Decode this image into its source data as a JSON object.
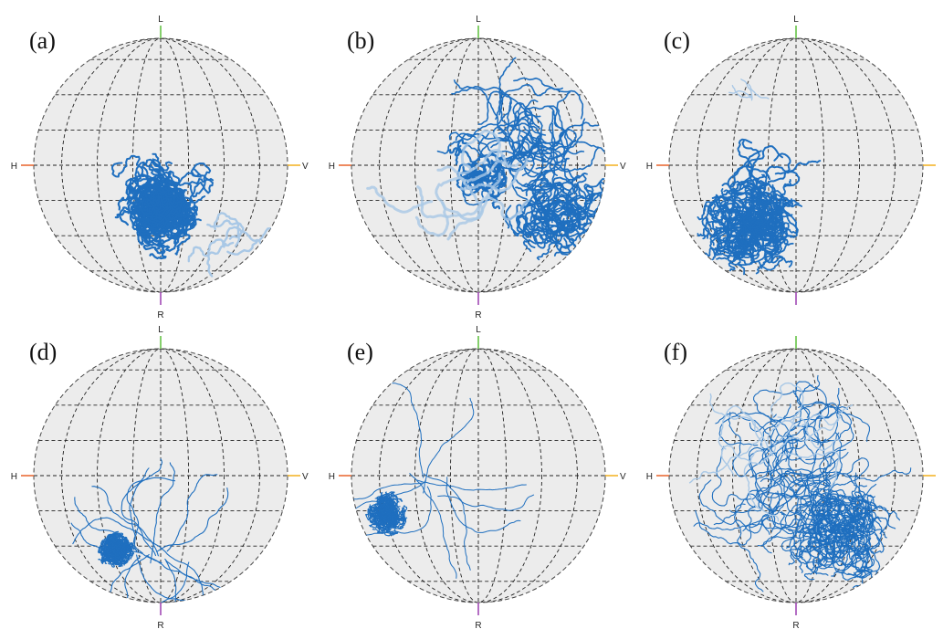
{
  "figure": {
    "panels": [
      {
        "label": "(a)",
        "axis_labels": {
          "top": "L",
          "bottom": "R",
          "left": "H",
          "right": "V"
        }
      },
      {
        "label": "(b)",
        "axis_labels": {
          "top": "L",
          "bottom": "R",
          "left": "H",
          "right": "V"
        }
      },
      {
        "label": "(c)",
        "axis_labels": {
          "top": "L",
          "bottom": "",
          "left": "H",
          "right": ""
        }
      },
      {
        "label": "(d)",
        "axis_labels": {
          "top": "L",
          "bottom": "R",
          "left": "H",
          "right": "V"
        }
      },
      {
        "label": "(e)",
        "axis_labels": {
          "top": "L",
          "bottom": "R",
          "left": "H",
          "right": "V"
        }
      },
      {
        "label": "(f)",
        "axis_labels": {
          "top": "",
          "bottom": "R",
          "left": "H",
          "right": ""
        }
      }
    ],
    "colors": {
      "sphere_fill": "#ececec",
      "sphere_outline": "#444444",
      "grid": "#222222",
      "trace": "#1f6fbf",
      "trace_light": "#a9c8e6",
      "H_axis": "#e8632a",
      "V_axis": "#f2b01e",
      "L_axis": "#5cbf3a",
      "R_axis": "#9a3db0"
    }
  }
}
